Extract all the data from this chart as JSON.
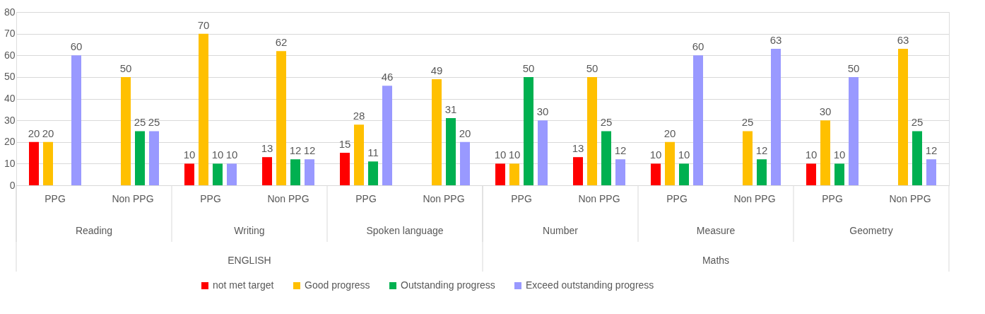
{
  "chart_data": {
    "type": "bar",
    "categories": [
      "PPG",
      "Non PPG",
      "PPG",
      "Non PPG",
      "PPG",
      "Non PPG",
      "PPG",
      "Non PPG",
      "PPG",
      "Non PPG",
      "PPG",
      "Non PPG"
    ],
    "series": [
      {
        "name": "not met target",
        "color": "#ff0000",
        "values": [
          20,
          null,
          10,
          13,
          15,
          null,
          10,
          13,
          10,
          null,
          10,
          null
        ]
      },
      {
        "name": "Good progress",
        "color": "#ffc000",
        "values": [
          20,
          50,
          70,
          62,
          28,
          49,
          10,
          50,
          20,
          25,
          30,
          63
        ]
      },
      {
        "name": "Outstanding progress",
        "color": "#00b050",
        "values": [
          null,
          25,
          10,
          12,
          11,
          31,
          50,
          25,
          10,
          12,
          10,
          25
        ]
      },
      {
        "name": "Exceed outstanding progress",
        "color": "#9999ff",
        "values": [
          60,
          25,
          10,
          12,
          46,
          20,
          30,
          12,
          60,
          63,
          50,
          12
        ]
      }
    ],
    "annotations": [
      "Reading",
      "Writing",
      "Spoken language",
      "Number",
      "Measure",
      "Geometry",
      "ENGLISH",
      "Maths"
    ],
    "ylim": [
      0,
      80
    ],
    "yticks": [
      0,
      10,
      20,
      30,
      40,
      50,
      60,
      70,
      80
    ],
    "grid": "y",
    "legend": "bottom",
    "data_labels": true
  }
}
